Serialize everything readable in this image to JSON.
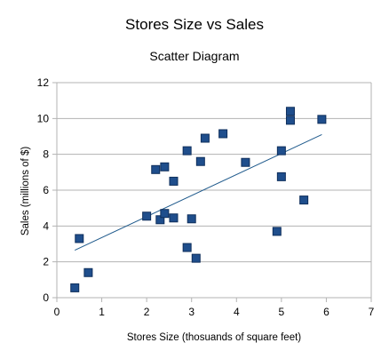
{
  "chart_data": {
    "type": "scatter",
    "title": "Stores Size vs Sales",
    "subtitle": "Scatter Diagram",
    "xlabel": "Stores Size (thosuands of square feet)",
    "ylabel": "Sales (millions of $)",
    "xlim": [
      0,
      7
    ],
    "ylim": [
      0,
      12
    ],
    "xticks": [
      0,
      1,
      2,
      3,
      4,
      5,
      6,
      7
    ],
    "yticks": [
      0,
      2,
      4,
      6,
      8,
      10,
      12
    ],
    "grid": "horizontal",
    "legend": "none",
    "marker_color": "#1f4e8c",
    "trendline_color": "#1f5a8c",
    "points": [
      {
        "x": 0.4,
        "y": 0.55
      },
      {
        "x": 0.5,
        "y": 3.3
      },
      {
        "x": 0.7,
        "y": 1.4
      },
      {
        "x": 2.0,
        "y": 4.55
      },
      {
        "x": 2.2,
        "y": 7.15
      },
      {
        "x": 2.3,
        "y": 4.35
      },
      {
        "x": 2.4,
        "y": 7.3
      },
      {
        "x": 2.4,
        "y": 4.7
      },
      {
        "x": 2.6,
        "y": 6.5
      },
      {
        "x": 2.6,
        "y": 4.45
      },
      {
        "x": 2.9,
        "y": 8.2
      },
      {
        "x": 2.9,
        "y": 2.8
      },
      {
        "x": 3.0,
        "y": 4.4
      },
      {
        "x": 3.1,
        "y": 2.2
      },
      {
        "x": 3.2,
        "y": 7.6
      },
      {
        "x": 3.3,
        "y": 8.9
      },
      {
        "x": 3.7,
        "y": 9.15
      },
      {
        "x": 4.2,
        "y": 7.55
      },
      {
        "x": 4.9,
        "y": 3.7
      },
      {
        "x": 5.0,
        "y": 8.2
      },
      {
        "x": 5.0,
        "y": 6.75
      },
      {
        "x": 5.2,
        "y": 10.4
      },
      {
        "x": 5.2,
        "y": 9.9
      },
      {
        "x": 5.5,
        "y": 5.45
      },
      {
        "x": 5.9,
        "y": 9.95
      }
    ],
    "trendline": [
      {
        "x": 0.4,
        "y": 2.65
      },
      {
        "x": 5.9,
        "y": 9.1
      }
    ]
  }
}
